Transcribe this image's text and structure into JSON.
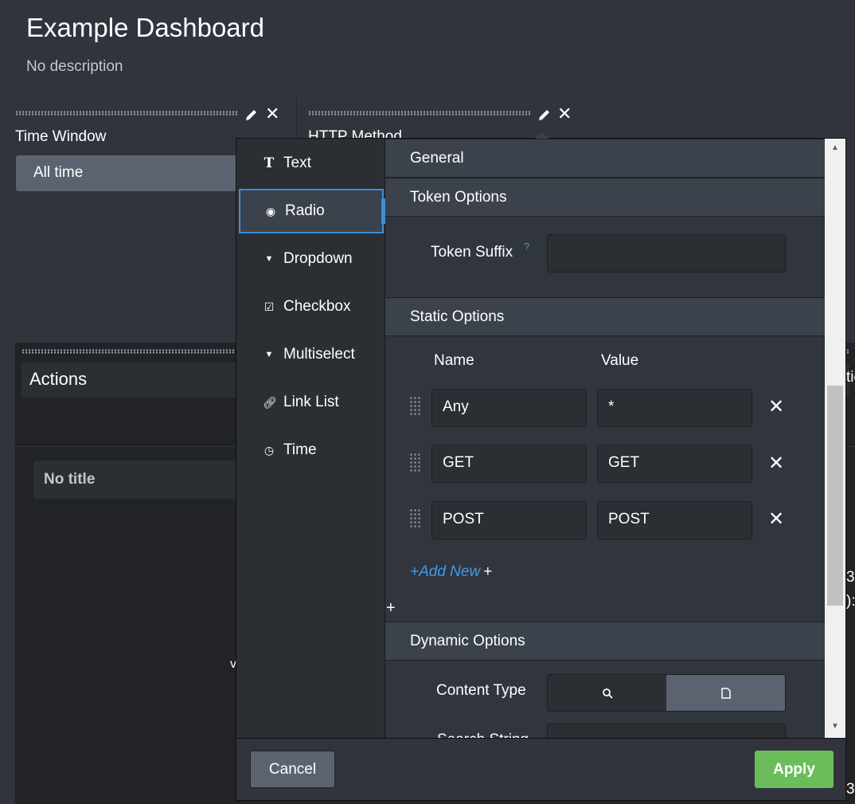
{
  "dashboard": {
    "title": "Example Dashboard",
    "description": "No description"
  },
  "inputs": [
    {
      "label": "Time Window",
      "value": "All time"
    },
    {
      "label": "HTTP Method"
    }
  ],
  "lower_panel": {
    "title": "Actions",
    "subpanel_title": "No title",
    "fragment": "v",
    "right_fragments": [
      "tio",
      "3",
      "):",
      "3"
    ]
  },
  "editor": {
    "types": [
      {
        "label": "Text",
        "icon": "text-icon"
      },
      {
        "label": "Radio",
        "icon": "radio-icon",
        "selected": true
      },
      {
        "label": "Dropdown",
        "icon": "caret-down-icon"
      },
      {
        "label": "Checkbox",
        "icon": "checkbox-icon"
      },
      {
        "label": "Multiselect",
        "icon": "caret-down-icon"
      },
      {
        "label": "Link List",
        "icon": "link-icon"
      },
      {
        "label": "Time",
        "icon": "clock-icon"
      }
    ],
    "sections": {
      "general": "General",
      "token_options": "Token Options",
      "static_options": "Static Options",
      "dynamic_options": "Dynamic Options"
    },
    "token_suffix": {
      "label": "Token Suffix",
      "help": "?",
      "value": ""
    },
    "static": {
      "name_header": "Name",
      "value_header": "Value",
      "rows": [
        {
          "name": "Any",
          "value": "*"
        },
        {
          "name": "GET",
          "value": "GET"
        },
        {
          "name": "POST",
          "value": "POST"
        }
      ],
      "add_new": "+Add New",
      "plus": "+"
    },
    "dynamic": {
      "content_type_label": "Content Type",
      "content_type_selected": "report",
      "search_string_label": "Search String"
    },
    "cancel": "Cancel",
    "apply": "Apply",
    "colors": {
      "accent": "#3a8fd9",
      "apply": "#6bbd5b",
      "link": "#3d9be9"
    }
  }
}
